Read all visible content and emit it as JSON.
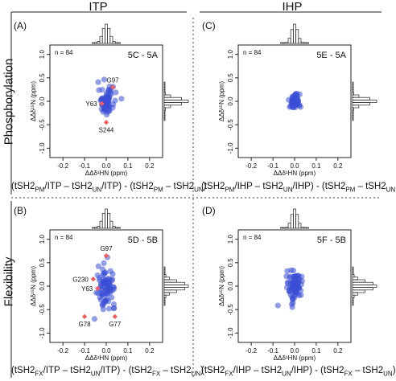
{
  "columns": [
    "ITP",
    "IHP"
  ],
  "rows": [
    "Phosphorylation",
    "Flexibility"
  ],
  "formulas": {
    "top_left": "(tSH2PM/ITP – tSH2UN/ITP) - (tSH2PM – tSH2UN)",
    "top_right": "(tSH2PM/IHP – tSH2UN/IHP) - (tSH2PM – tSH2UN)",
    "bottom_left": "(tSH2FX/ITP – tSH2UN/ITP) - (tSH2FX – tSH2UN)",
    "bottom_right": "(tSH2FX/IHP – tSH2UN/IHP) - (tSH2FX – tSH2UN)"
  },
  "colors": {
    "points": "#3a4fd6",
    "highlight": "#f25c5c",
    "axis": "#222222"
  },
  "chart_data": [
    {
      "type": "scatter",
      "panel": "(A)",
      "comparison": "5C - 5A",
      "n_label": "n = 84",
      "xlabel": "ΔΔδ¹HN (ppm)",
      "ylabel": "ΔΔδ¹⁵N (ppm)",
      "xticks": [
        "-0.2",
        "-0.1",
        "0.0",
        "0.1",
        "0.2"
      ],
      "yticks": [
        "-1.0",
        "-0.5",
        "0.0",
        "0.5",
        "1.0"
      ],
      "xlim": [
        -0.26,
        0.26
      ],
      "ylim": [
        -1.2,
        1.2
      ],
      "highlights": [
        {
          "label": "G97",
          "x": 0.03,
          "y": 0.3
        },
        {
          "label": "Y63",
          "x": -0.02,
          "y": -0.05
        },
        {
          "label": "S244",
          "x": 0.0,
          "y": -0.45
        }
      ]
    },
    {
      "type": "scatter",
      "panel": "(C)",
      "comparison": "5E - 5A",
      "n_label": "n = 84",
      "xlabel": "ΔΔδ¹HN (ppm)",
      "ylabel": "ΔΔδ¹⁵N (ppm)",
      "xticks": [
        "-0.2",
        "-0.1",
        "0.0",
        "0.1",
        "0.2"
      ],
      "yticks": [
        "-1.0",
        "-0.5",
        "0.0",
        "0.5",
        "1.0"
      ],
      "xlim": [
        -0.26,
        0.26
      ],
      "ylim": [
        -1.2,
        1.2
      ],
      "highlights": []
    },
    {
      "type": "scatter",
      "panel": "(B)",
      "comparison": "5D - 5B",
      "n_label": "n = 84",
      "xlabel": "ΔΔδ¹HN (ppm)",
      "ylabel": "ΔΔδ¹⁵N (ppm)",
      "xticks": [
        "-0.2",
        "-0.1",
        "0.0",
        "0.1",
        "0.2"
      ],
      "yticks": [
        "-1.0",
        "-0.5",
        "0.0",
        "0.5",
        "1.0"
      ],
      "xlim": [
        -0.26,
        0.26
      ],
      "ylim": [
        -1.2,
        1.2
      ],
      "highlights": [
        {
          "label": "G97",
          "x": 0.0,
          "y": 0.65
        },
        {
          "label": "G230",
          "x": -0.06,
          "y": 0.15
        },
        {
          "label": "Y63",
          "x": -0.04,
          "y": -0.05
        },
        {
          "label": "G78",
          "x": -0.1,
          "y": -0.65
        },
        {
          "label": "G77",
          "x": 0.04,
          "y": -0.65
        }
      ]
    },
    {
      "type": "scatter",
      "panel": "(D)",
      "comparison": "5F - 5B",
      "n_label": "n = 84",
      "xlabel": "ΔΔδ¹HN (ppm)",
      "ylabel": "ΔΔδ¹⁵N (ppm)",
      "xticks": [
        "-0.2",
        "-0.1",
        "0.0",
        "0.1",
        "0.2"
      ],
      "yticks": [
        "-1.0",
        "-0.5",
        "0.0",
        "0.5",
        "1.0"
      ],
      "xlim": [
        -0.26,
        0.26
      ],
      "ylim": [
        -1.2,
        1.2
      ],
      "highlights": []
    }
  ]
}
